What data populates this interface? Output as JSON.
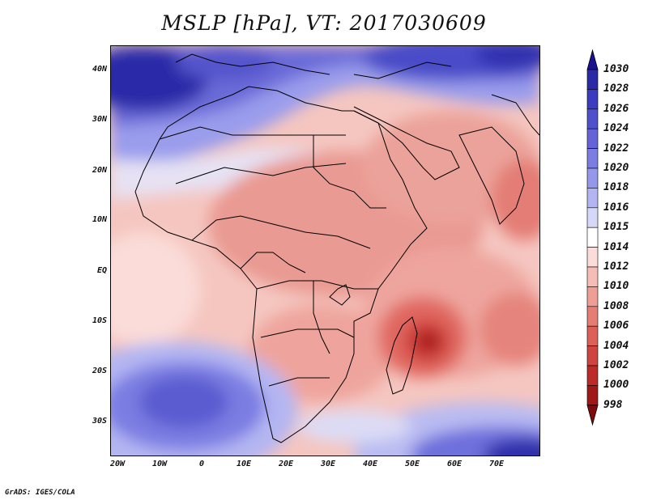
{
  "title": "MSLP [hPa], VT: 2017030609",
  "credit": "GrADS: IGES/COLA",
  "lat_labels": [
    "40N",
    "30N",
    "20N",
    "10N",
    "EQ",
    "10S",
    "20S",
    "30S"
  ],
  "lon_labels": [
    "20W",
    "10W",
    "0",
    "10E",
    "20E",
    "30E",
    "40E",
    "50E",
    "60E",
    "70E"
  ],
  "colorbar": {
    "levels": [
      "1030",
      "1028",
      "1026",
      "1024",
      "1022",
      "1020",
      "1018",
      "1016",
      "1015",
      "1014",
      "1012",
      "1010",
      "1008",
      "1006",
      "1004",
      "1002",
      "1000",
      "998"
    ],
    "colors": [
      "#1a1190",
      "#2a2aa8",
      "#3c3cc0",
      "#4f50cc",
      "#6464d8",
      "#7b7de2",
      "#9597ec",
      "#b3b5f2",
      "#d6d8f8",
      "#ffffff",
      "#fbdcd8",
      "#f5bdb6",
      "#ef9e96",
      "#e57d75",
      "#dc5f58",
      "#cf4440",
      "#bc2a2a",
      "#a01818",
      "#7f0c0c"
    ]
  }
}
